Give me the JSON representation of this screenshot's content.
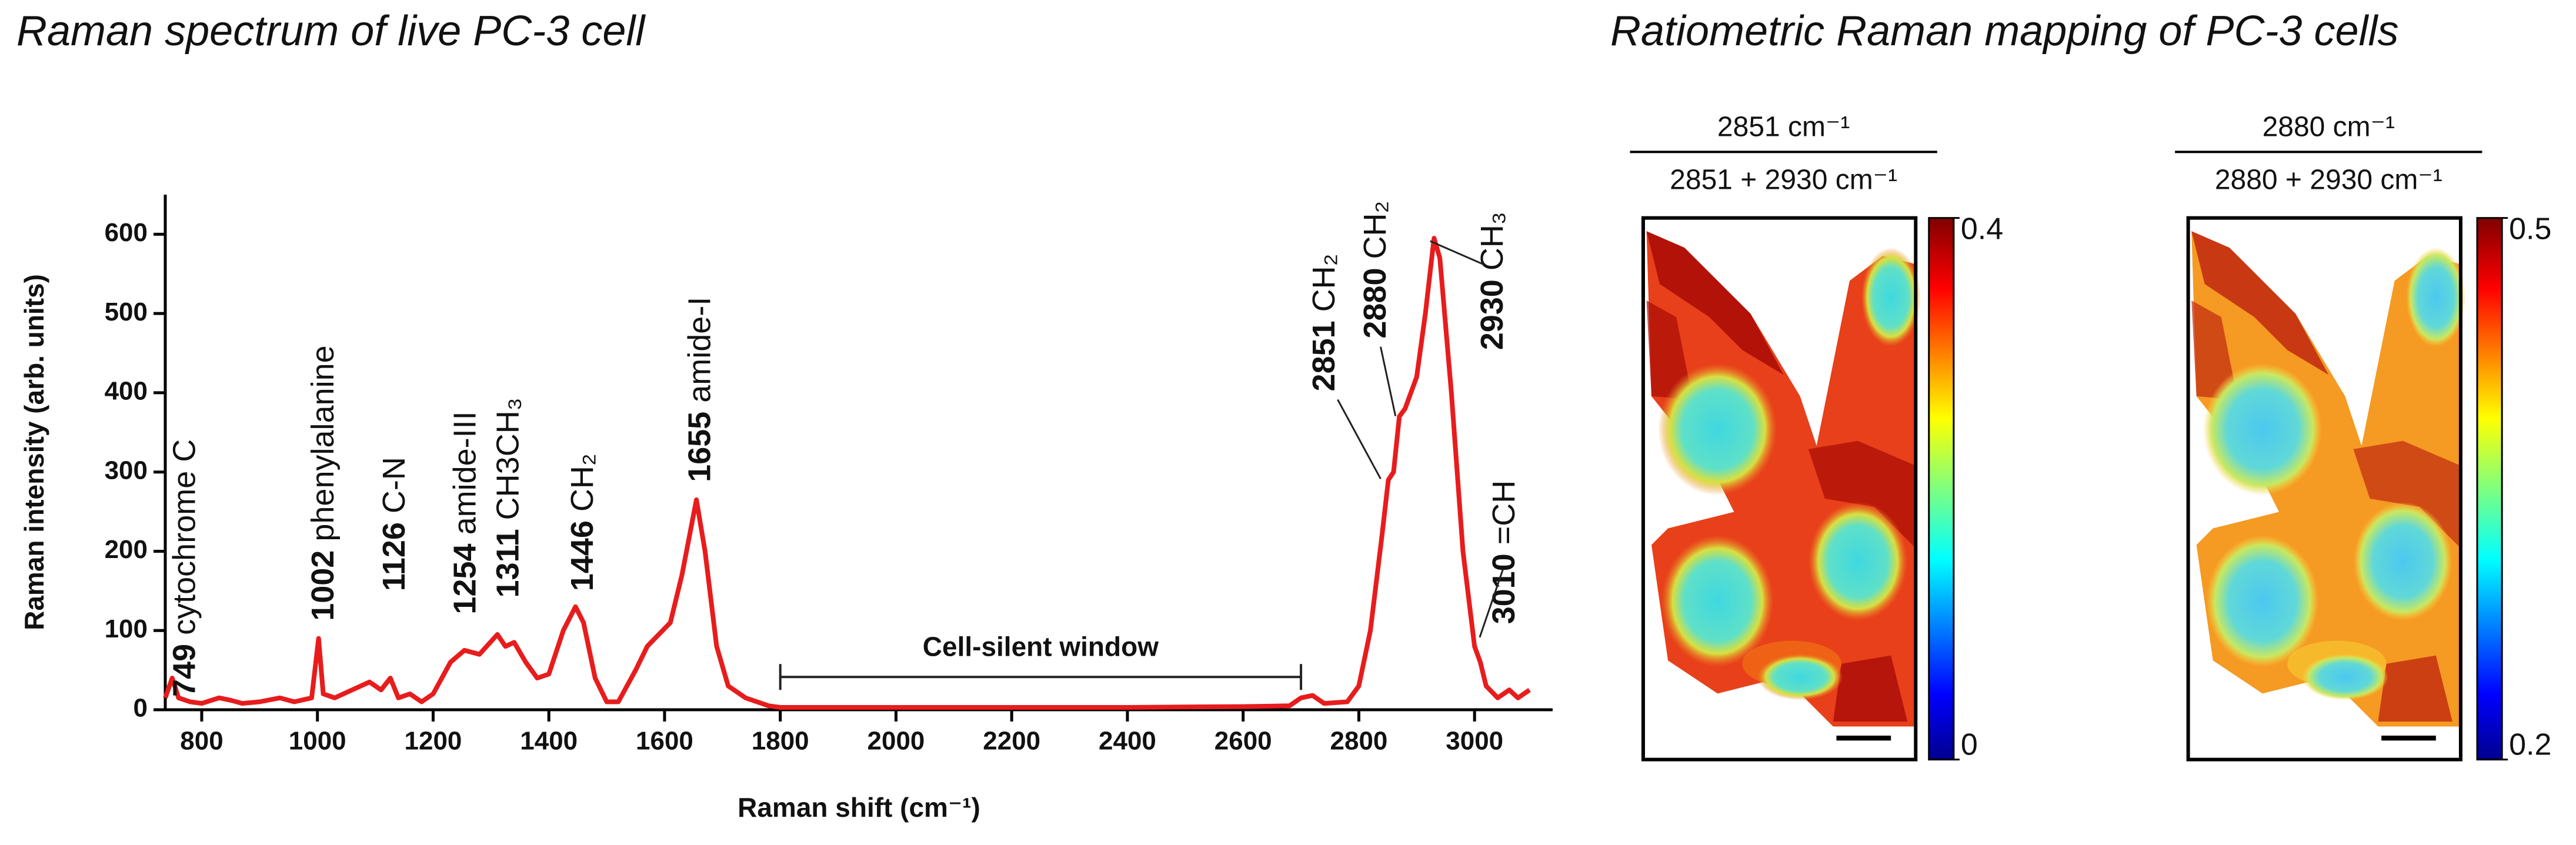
{
  "chart_data": {
    "type": "line",
    "title": "Raman spectrum of live PC-3 cell",
    "x_label": "Raman shift (cm⁻¹)",
    "y_label": "Raman intensity (arb. units)",
    "color": "#e81c1c",
    "x": [
      737,
      749,
      760,
      780,
      800,
      830,
      850,
      870,
      900,
      935,
      960,
      990,
      1002,
      1010,
      1030,
      1060,
      1090,
      1110,
      1126,
      1140,
      1160,
      1180,
      1200,
      1230,
      1254,
      1280,
      1311,
      1325,
      1340,
      1360,
      1380,
      1400,
      1425,
      1446,
      1460,
      1480,
      1500,
      1520,
      1550,
      1570,
      1590,
      1610,
      1630,
      1655,
      1670,
      1690,
      1710,
      1740,
      1780,
      1800,
      2000,
      2200,
      2400,
      2600,
      2680,
      2700,
      2720,
      2740,
      2780,
      2800,
      2820,
      2840,
      2851,
      2860,
      2870,
      2880,
      2900,
      2915,
      2930,
      2940,
      2960,
      2980,
      3000,
      3010,
      3020,
      3040,
      3060,
      3075,
      3095
    ],
    "values": [
      15,
      40,
      15,
      10,
      8,
      15,
      12,
      8,
      10,
      15,
      10,
      15,
      90,
      20,
      15,
      25,
      35,
      25,
      40,
      15,
      20,
      10,
      20,
      60,
      75,
      70,
      95,
      80,
      85,
      60,
      40,
      45,
      100,
      130,
      110,
      40,
      10,
      10,
      50,
      80,
      95,
      110,
      170,
      265,
      200,
      80,
      30,
      15,
      5,
      3,
      3,
      3,
      3,
      4,
      5,
      15,
      18,
      8,
      10,
      30,
      100,
      220,
      290,
      300,
      370,
      380,
      420,
      500,
      595,
      570,
      400,
      200,
      80,
      60,
      30,
      15,
      25,
      15,
      25
    ],
    "xlim": [
      737,
      3135
    ],
    "xticks": [
      800,
      1000,
      1200,
      1400,
      1600,
      1800,
      2000,
      2200,
      2400,
      2600,
      2800,
      3000
    ],
    "ylim": [
      0,
      650
    ],
    "yticks": [
      0,
      100,
      200,
      300,
      400,
      500,
      600
    ],
    "annotations": [
      {
        "x": 749,
        "text": "cytochrome C"
      },
      {
        "x": 1002,
        "text": "phenylalanine"
      },
      {
        "x": 1126,
        "text": "C-N"
      },
      {
        "x": 1254,
        "text": "amide-III"
      },
      {
        "x": 1311,
        "text": "CH3CH₃"
      },
      {
        "x": 1446,
        "text": "CH₂"
      },
      {
        "x": 1655,
        "text": "amide-I"
      },
      {
        "x": 2851,
        "text": "CH₂"
      },
      {
        "x": 2880,
        "text": "CH₂"
      },
      {
        "x": 2930,
        "text": "CH₃"
      },
      {
        "x": 3010,
        "text": "=CH"
      }
    ],
    "region": {
      "label": "Cell-silent window",
      "span": [
        1800,
        2700
      ]
    }
  },
  "mapping": {
    "title": "Ratiometric Raman mapping of PC-3 cells",
    "panels": [
      {
        "numerator": "2851 cm⁻¹",
        "denominator": "2851 + 2930 cm⁻¹",
        "colorbar": {
          "clim": [
            0,
            0.4
          ],
          "ticks": [
            0,
            0.4
          ]
        }
      },
      {
        "numerator": "2880 cm⁻¹",
        "denominator": "2880 + 2930 cm⁻¹",
        "colorbar": {
          "clim": [
            0.2,
            0.5
          ],
          "ticks": [
            0.2,
            0.5
          ]
        }
      }
    ]
  }
}
